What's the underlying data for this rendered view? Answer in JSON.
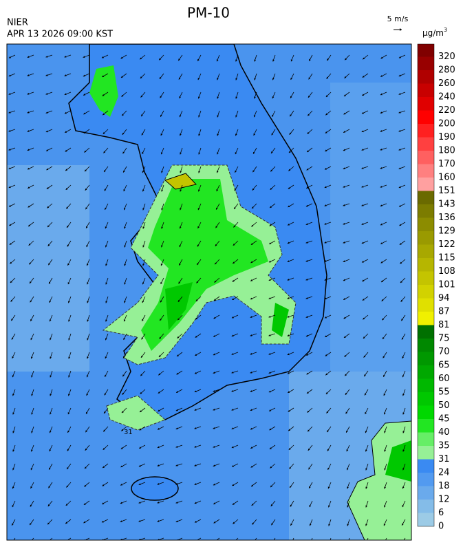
{
  "header": {
    "title": "PM-10",
    "agency": "NIER",
    "timestamp": "APR 13 2026 09:00 KST"
  },
  "wind_scale": {
    "label": "5 m/s"
  },
  "map_labels": [
    "31"
  ],
  "colorbar": {
    "unit": "µg/m",
    "unit_power": "3",
    "levels": [
      {
        "label": "0",
        "color": "#9ccbe6"
      },
      {
        "label": "6",
        "color": "#84bce8"
      },
      {
        "label": "12",
        "color": "#6aaaec"
      },
      {
        "label": "18",
        "color": "#529af0"
      },
      {
        "label": "24",
        "color": "#3a8af2"
      },
      {
        "label": "31",
        "color": "#96f096"
      },
      {
        "label": "35",
        "color": "#66ee66"
      },
      {
        "label": "40",
        "color": "#22e622"
      },
      {
        "label": "45",
        "color": "#00d800"
      },
      {
        "label": "50",
        "color": "#00c800"
      },
      {
        "label": "55",
        "color": "#00b800"
      },
      {
        "label": "60",
        "color": "#00a800"
      },
      {
        "label": "65",
        "color": "#009800"
      },
      {
        "label": "70",
        "color": "#008800"
      },
      {
        "label": "75",
        "color": "#007000"
      },
      {
        "label": "81",
        "color": "#f0f000"
      },
      {
        "label": "87",
        "color": "#e0e000"
      },
      {
        "label": "94",
        "color": "#d2d200"
      },
      {
        "label": "101",
        "color": "#c4c400"
      },
      {
        "label": "108",
        "color": "#b6b600"
      },
      {
        "label": "115",
        "color": "#a8a800"
      },
      {
        "label": "122",
        "color": "#9a9a00"
      },
      {
        "label": "129",
        "color": "#8c8c00"
      },
      {
        "label": "136",
        "color": "#7c7c00"
      },
      {
        "label": "143",
        "color": "#6a6a00"
      },
      {
        "label": "151",
        "color": "#ffa0a0"
      },
      {
        "label": "160",
        "color": "#ff8080"
      },
      {
        "label": "170",
        "color": "#ff6060"
      },
      {
        "label": "180",
        "color": "#ff4040"
      },
      {
        "label": "190",
        "color": "#ff2020"
      },
      {
        "label": "200",
        "color": "#ff0000"
      },
      {
        "label": "220",
        "color": "#e00000"
      },
      {
        "label": "240",
        "color": "#c80000"
      },
      {
        "label": "260",
        "color": "#b00000"
      },
      {
        "label": "280",
        "color": "#980000"
      },
      {
        "label": "320",
        "color": "#800000"
      }
    ]
  }
}
